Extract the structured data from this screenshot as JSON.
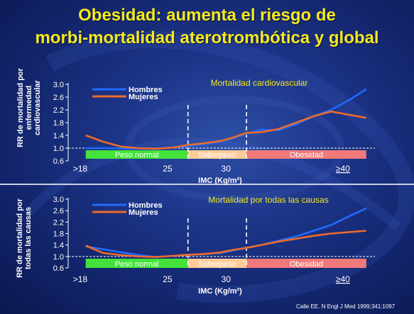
{
  "title_line1": "Obesidad: aumenta el riesgo de",
  "title_line2": "morbi-mortalidad aterotrombótica y global",
  "citation": "Calle EE. N Engl J Med 1999;341:1097",
  "colors": {
    "hombres": "#1f6bff",
    "mujeres": "#ee6a2a",
    "normal": "#44e23a",
    "sobrepeso": "#ffcc99",
    "obesidad": "#f07a7a",
    "title": "#f5ea1a"
  },
  "chart_data": [
    {
      "type": "line",
      "title": "Mortalidad cardiovascular",
      "ylabel_lines": [
        "RR de mortalidad por",
        "enfermedad",
        "cardiovascular"
      ],
      "xlabel": "IMC (Kg/m²)",
      "xlim": [
        16.5,
        42.5
      ],
      "ylim": [
        0.6,
        3.0
      ],
      "yticks": [
        "0.6",
        "1.0",
        "1.4",
        "1.8",
        "2.2",
        "2.6",
        "3.0"
      ],
      "xticks": [
        {
          "v": 25,
          "label": "25"
        },
        {
          "v": 30,
          "label": "30"
        }
      ],
      "x_first_label": ">18",
      "x_last_label": "≥40",
      "reference_y": 1.0,
      "dashed_vlines": [
        26.75,
        31.75
      ],
      "bands": [
        {
          "name": "Peso normal",
          "from": 18,
          "to": 26.75,
          "color": "#44e23a"
        },
        {
          "name": "Sobrepeso",
          "from": 26.75,
          "to": 31.75,
          "color": "#ffcc99"
        },
        {
          "name": "Obesidad",
          "from": 31.75,
          "to": 42,
          "color": "#f07a7a"
        }
      ],
      "legend": [
        "Hombres",
        "Mujeres"
      ],
      "series": [
        {
          "name": "Hombres",
          "x": [
            18,
            19.5,
            21,
            22.5,
            24,
            25.5,
            26.75,
            28,
            29.5,
            30.5,
            31.75,
            33,
            34.5,
            36,
            37.5,
            39,
            40.5,
            42
          ],
          "y": [
            1.0,
            1.0,
            0.99,
            0.99,
            0.99,
            1.02,
            1.06,
            1.12,
            1.2,
            1.3,
            1.45,
            1.58,
            1.56,
            1.75,
            2.0,
            2.2,
            2.5,
            2.85
          ]
        },
        {
          "name": "Mujeres",
          "x": [
            18,
            19.5,
            21,
            22.5,
            24,
            25.5,
            26.75,
            28,
            29.5,
            30.5,
            31.75,
            33,
            34.5,
            36,
            37.5,
            39,
            40.5,
            42
          ],
          "y": [
            1.4,
            1.2,
            1.05,
            1.0,
            0.98,
            1.02,
            1.1,
            1.15,
            1.22,
            1.32,
            1.48,
            1.5,
            1.6,
            1.8,
            2.0,
            2.15,
            2.05,
            1.95
          ]
        }
      ]
    },
    {
      "type": "line",
      "title": "Mortalidad por todas las causas",
      "ylabel_lines": [
        "RR de mortalidad por",
        "todas las causas"
      ],
      "xlabel": "IMC (Kg/m²)",
      "xlim": [
        16.5,
        42.5
      ],
      "ylim": [
        0.6,
        3.0
      ],
      "yticks": [
        "0.6",
        "1.0",
        "1.4",
        "1.8",
        "2.2",
        "2.6",
        "3.0"
      ],
      "xticks": [
        {
          "v": 25,
          "label": "25"
        },
        {
          "v": 30,
          "label": "30"
        }
      ],
      "x_first_label": ">18",
      "x_last_label": "≥40",
      "reference_y": 1.0,
      "dashed_vlines": [
        26.75,
        31.75
      ],
      "bands": [
        {
          "name": "Peso normal",
          "from": 18,
          "to": 26.75,
          "color": "#44e23a"
        },
        {
          "name": "Sobrepeso",
          "from": 26.75,
          "to": 31.75,
          "color": "#ffcc99"
        },
        {
          "name": "Obesidad",
          "from": 31.75,
          "to": 42,
          "color": "#f07a7a"
        }
      ],
      "legend": [
        "Hombres",
        "Mujeres"
      ],
      "series": [
        {
          "name": "Hombres",
          "x": [
            18,
            19.5,
            21,
            22.5,
            24,
            25.5,
            26.75,
            28,
            29.5,
            30.5,
            31.75,
            33,
            34.5,
            36,
            37.5,
            39,
            40.5,
            42
          ],
          "y": [
            1.35,
            1.25,
            1.15,
            1.05,
            0.98,
            1.02,
            1.06,
            1.08,
            1.12,
            1.2,
            1.3,
            1.4,
            1.55,
            1.7,
            1.9,
            2.1,
            2.4,
            2.68
          ]
        },
        {
          "name": "Mujeres",
          "x": [
            18,
            19.5,
            21,
            22.5,
            24,
            25.5,
            26.75,
            28,
            29.5,
            30.5,
            31.75,
            33,
            34.5,
            36,
            37.5,
            39,
            40.5,
            42
          ],
          "y": [
            1.38,
            1.12,
            1.05,
            1.0,
            0.98,
            1.02,
            1.06,
            1.08,
            1.14,
            1.22,
            1.3,
            1.4,
            1.52,
            1.62,
            1.72,
            1.8,
            1.85,
            1.9
          ]
        }
      ]
    }
  ]
}
